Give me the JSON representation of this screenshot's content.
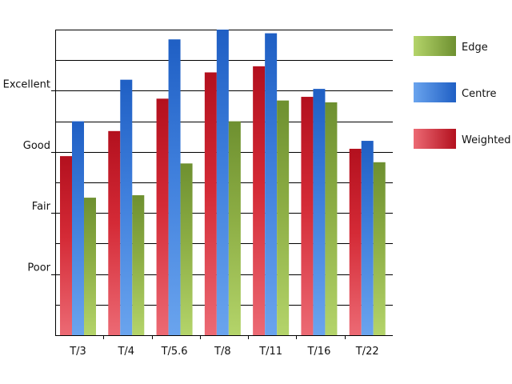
{
  "chart_data": {
    "type": "bar",
    "title": "",
    "xlabel": "",
    "ylabel": "",
    "categories": [
      "T/3",
      "T/4",
      "T/5.6",
      "T/8",
      "T/11",
      "T/16",
      "T/22"
    ],
    "y_tick_labels": [
      {
        "value": 1,
        "label": "Poor"
      },
      {
        "value": 2,
        "label": "Fair"
      },
      {
        "value": 3,
        "label": "Good"
      },
      {
        "value": 4,
        "label": "Excellent"
      }
    ],
    "ylim": [
      0,
      5
    ],
    "grid": true,
    "legend_position": "right",
    "series": [
      {
        "name": "Weighted",
        "color": "#d0182a",
        "values": [
          2.93,
          3.34,
          3.87,
          4.3,
          4.4,
          3.9,
          3.05
        ]
      },
      {
        "name": "Centre",
        "color": "#2f6fd0",
        "values": [
          3.5,
          4.18,
          4.84,
          5.0,
          4.94,
          4.03,
          3.18
        ]
      },
      {
        "name": "Edge",
        "color": "#7a9e3a",
        "values": [
          2.25,
          2.29,
          2.81,
          3.5,
          3.84,
          3.81,
          2.83
        ]
      }
    ],
    "legend_order": [
      "Edge",
      "Centre",
      "Weighted"
    ]
  }
}
